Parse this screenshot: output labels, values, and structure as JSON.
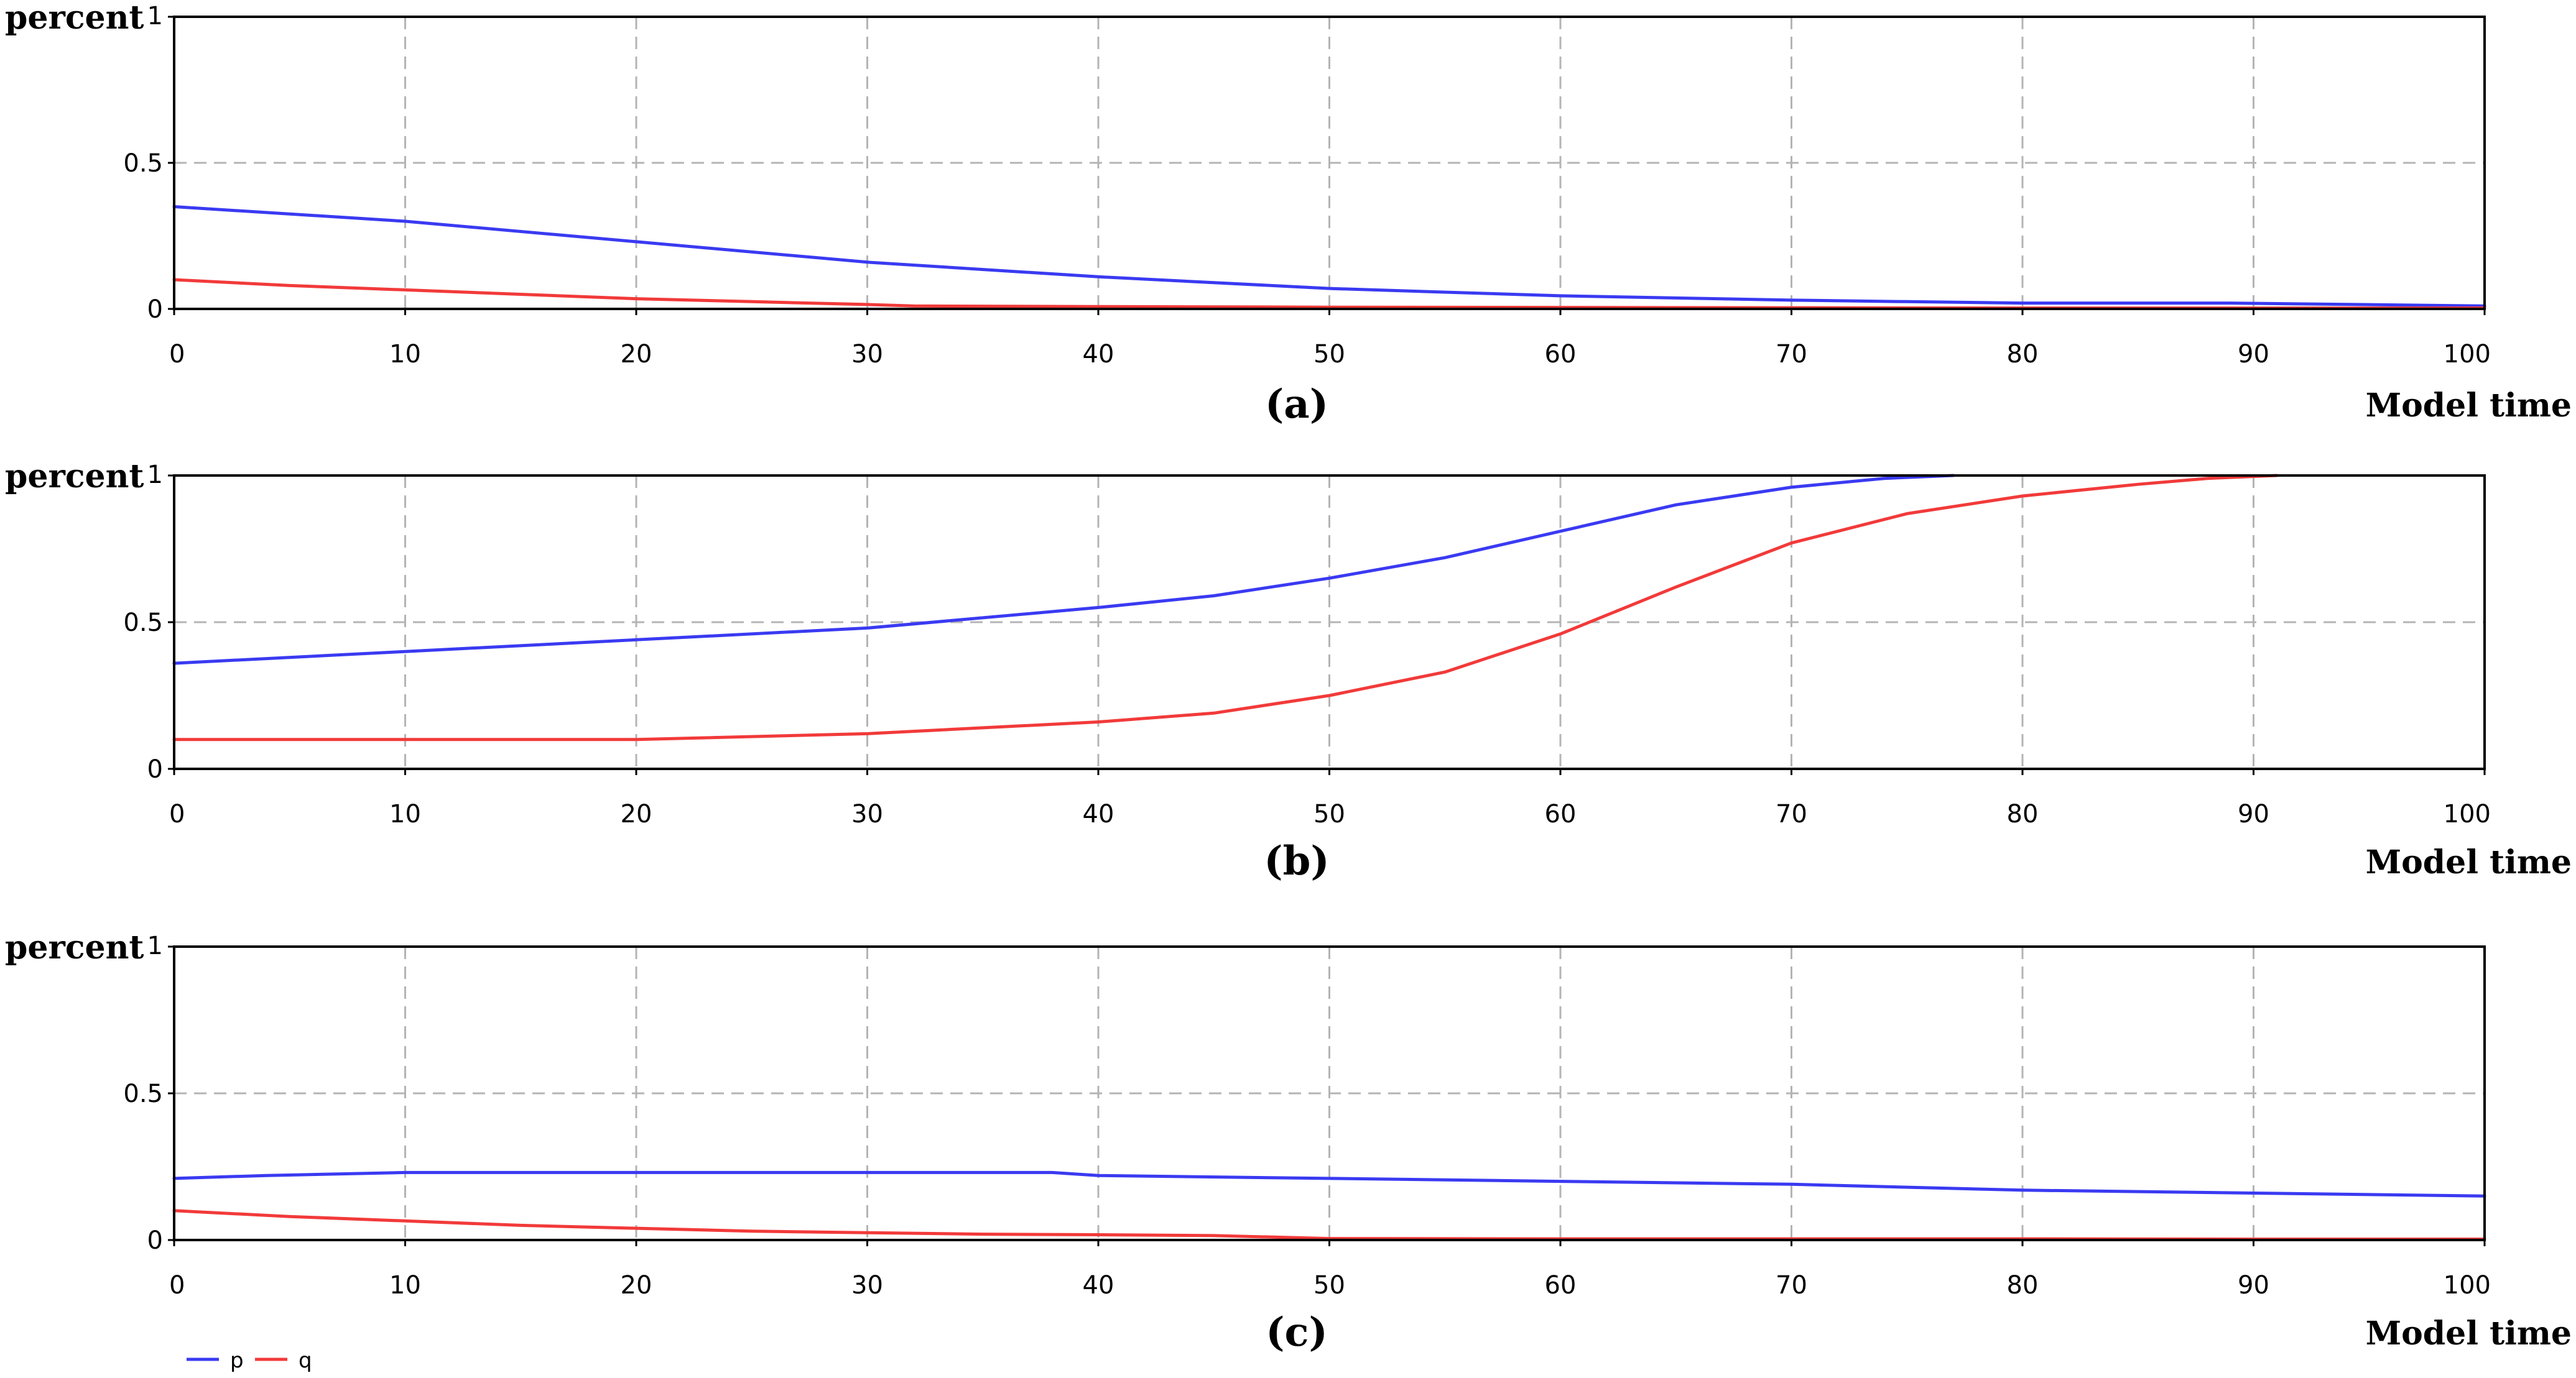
{
  "colors": {
    "p": "#3a3af2",
    "q": "#f23a3a"
  },
  "legend": [
    {
      "key": "p",
      "label": "p"
    },
    {
      "key": "q",
      "label": "q"
    }
  ],
  "chart_data": [
    {
      "type": "line",
      "caption": "(a)",
      "ylabel": "percent",
      "xlabel": "Model time",
      "xlim": [
        0,
        100
      ],
      "ylim": [
        0,
        1
      ],
      "xticks": [
        "0",
        "10",
        "20",
        "30",
        "40",
        "50",
        "60",
        "70",
        "80",
        "90",
        "100"
      ],
      "yticks": [
        "0",
        "0.5",
        "1"
      ],
      "grid": true,
      "series": [
        {
          "name": "p",
          "x": [
            0,
            10,
            20,
            30,
            40,
            50,
            60,
            70,
            75,
            80,
            89,
            100
          ],
          "y": [
            0.35,
            0.3,
            0.23,
            0.16,
            0.11,
            0.07,
            0.045,
            0.03,
            0.025,
            0.02,
            0.02,
            0.01
          ]
        },
        {
          "name": "q",
          "x": [
            0,
            5,
            10,
            15,
            20,
            25,
            30,
            32,
            40,
            50,
            60,
            70,
            80,
            90,
            100
          ],
          "y": [
            0.1,
            0.08,
            0.065,
            0.05,
            0.035,
            0.025,
            0.015,
            0.01,
            0.008,
            0.006,
            0.005,
            0.004,
            0.003,
            0.003,
            0.003
          ]
        }
      ]
    },
    {
      "type": "line",
      "caption": "(b)",
      "ylabel": "percent",
      "xlabel": "Model time",
      "xlim": [
        0,
        100
      ],
      "ylim": [
        0,
        1
      ],
      "xticks": [
        "0",
        "10",
        "20",
        "30",
        "40",
        "50",
        "60",
        "70",
        "80",
        "90",
        "100"
      ],
      "yticks": [
        "0",
        "0.5",
        "1"
      ],
      "grid": true,
      "series": [
        {
          "name": "p",
          "x": [
            0,
            10,
            20,
            30,
            40,
            45,
            50,
            55,
            60,
            65,
            70,
            74,
            77
          ],
          "y": [
            0.36,
            0.4,
            0.44,
            0.48,
            0.55,
            0.59,
            0.65,
            0.72,
            0.81,
            0.9,
            0.96,
            0.99,
            1.0
          ]
        },
        {
          "name": "q",
          "x": [
            0,
            10,
            20,
            30,
            35,
            40,
            45,
            50,
            55,
            60,
            65,
            70,
            75,
            80,
            85,
            88,
            91
          ],
          "y": [
            0.1,
            0.1,
            0.1,
            0.12,
            0.14,
            0.16,
            0.19,
            0.25,
            0.33,
            0.46,
            0.62,
            0.77,
            0.87,
            0.93,
            0.97,
            0.99,
            1.0
          ]
        }
      ]
    },
    {
      "type": "line",
      "caption": "(c)",
      "ylabel": "percent",
      "xlabel": "Model time",
      "xlim": [
        0,
        100
      ],
      "ylim": [
        0,
        1
      ],
      "xticks": [
        "0",
        "10",
        "20",
        "30",
        "40",
        "50",
        "60",
        "70",
        "80",
        "90",
        "100"
      ],
      "yticks": [
        "0",
        "0.5",
        "1"
      ],
      "grid": true,
      "series": [
        {
          "name": "p",
          "x": [
            0,
            4,
            10,
            20,
            30,
            38,
            40,
            50,
            60,
            70,
            80,
            90,
            100
          ],
          "y": [
            0.21,
            0.22,
            0.23,
            0.23,
            0.23,
            0.23,
            0.22,
            0.21,
            0.2,
            0.19,
            0.17,
            0.16,
            0.15
          ]
        },
        {
          "name": "q",
          "x": [
            0,
            5,
            10,
            15,
            20,
            25,
            30,
            35,
            40,
            45,
            50,
            60,
            70,
            80,
            90,
            100
          ],
          "y": [
            0.1,
            0.08,
            0.065,
            0.05,
            0.04,
            0.03,
            0.025,
            0.02,
            0.018,
            0.015,
            0.005,
            0.004,
            0.004,
            0.004,
            0.003,
            0.003
          ]
        }
      ]
    }
  ]
}
